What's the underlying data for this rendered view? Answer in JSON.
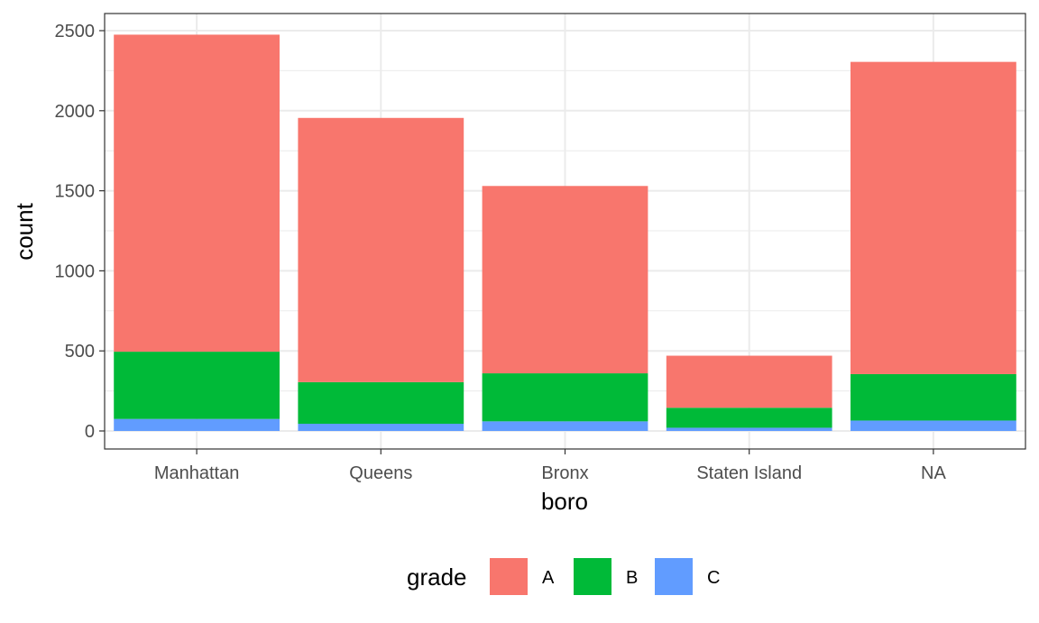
{
  "chart_data": {
    "type": "bar",
    "stacked": true,
    "categories": [
      "Manhattan",
      "Queens",
      "Bronx",
      "Staten Island",
      "NA"
    ],
    "series": [
      {
        "name": "A",
        "color": "#F8766D",
        "values": [
          1980,
          1650,
          1170,
          325,
          1950
        ]
      },
      {
        "name": "B",
        "color": "#00BA38",
        "values": [
          420,
          260,
          300,
          125,
          290
        ]
      },
      {
        "name": "C",
        "color": "#619CFF",
        "values": [
          75,
          45,
          60,
          20,
          65
        ]
      }
    ],
    "xlabel": "boro",
    "ylabel": "count",
    "ylim": [
      0,
      2600
    ],
    "yticks": [
      0,
      500,
      1000,
      1500,
      2000,
      2500
    ],
    "legend": {
      "title": "grade",
      "position": "bottom"
    },
    "grid": true
  }
}
